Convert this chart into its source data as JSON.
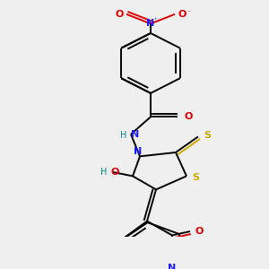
{
  "bg_color": "#efefef",
  "bond_lw": 1.4,
  "font_size": 7.5,
  "atom_colors": {
    "C": "black",
    "N": "#1a1aff",
    "O": "#dd0000",
    "S": "#ccaa00",
    "H": "#008888"
  }
}
